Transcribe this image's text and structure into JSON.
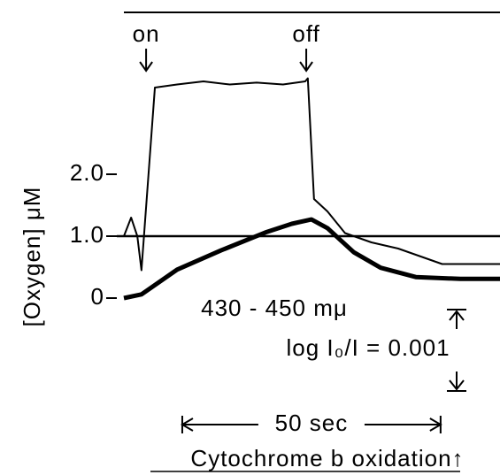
{
  "chart_data": {
    "type": "line",
    "y_label": "[Oxygen] μM",
    "xlim": [
      0,
      72.8
    ],
    "ylim": [
      -0.5,
      3.8
    ],
    "yticks": [
      0,
      {
        "value": 1,
        "label": "1.0"
      },
      {
        "value": 2,
        "label": "2.0"
      }
    ],
    "reference_line": 1,
    "series": [
      {
        "color": "#000000",
        "width": 2,
        "x": [
          0,
          1.4,
          2.6,
          3.4,
          6.0,
          10.3,
          15.4,
          20.5,
          25.7,
          30.8,
          35.1,
          35.6,
          36.8,
          39.4,
          42.8,
          47.9,
          53.1,
          58.2,
          61.6,
          66.8,
          72.8
        ],
        "values": [
          1.0,
          1.3,
          1.0,
          0.45,
          3.4,
          3.45,
          3.5,
          3.45,
          3.48,
          3.45,
          3.5,
          3.55,
          1.6,
          1.4,
          1.05,
          0.9,
          0.8,
          0.65,
          0.55,
          0.55,
          0.55
        ]
      },
      {
        "color": "#000000",
        "width": 5,
        "x": [
          0,
          3.4,
          10.3,
          18.8,
          27.4,
          32.5,
          36.3,
          39.4,
          44.5,
          49.7,
          56.5,
          65.1,
          72.8
        ],
        "values": [
          0,
          0.06,
          0.46,
          0.77,
          1.06,
          1.2,
          1.27,
          1.13,
          0.74,
          0.49,
          0.34,
          0.31,
          0.31
        ]
      }
    ],
    "events": [
      {
        "label": "on",
        "x": 4.3
      },
      {
        "label": "off",
        "x": 35.3
      }
    ],
    "wavelength_label": "430 - 450 mμ",
    "absorbance_scale_label": "log I₀/I = 0.001",
    "time_scale_bar": {
      "label": "50 sec",
      "value": 50,
      "start": 11.3
    },
    "footer": "Cytochrome b  oxidation↑"
  }
}
